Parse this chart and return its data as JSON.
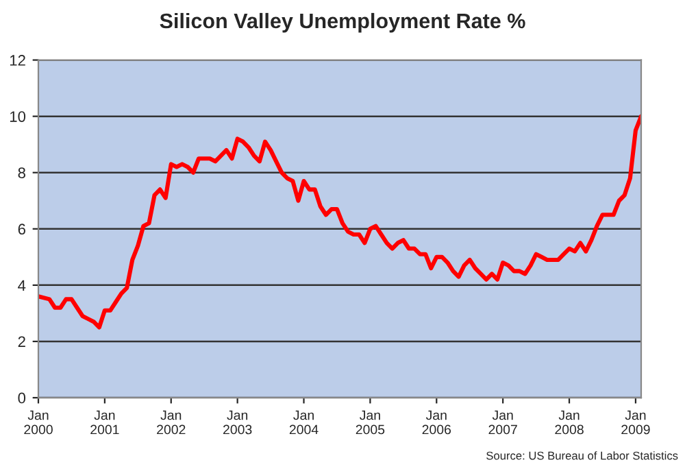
{
  "chart_data": {
    "type": "line",
    "title": "Silicon Valley Unemployment Rate %",
    "x": [
      "2000-01",
      "2000-03",
      "2000-04",
      "2000-05",
      "2000-06",
      "2000-07",
      "2000-08",
      "2000-09",
      "2000-10",
      "2000-11",
      "2000-12",
      "2001-01",
      "2001-02",
      "2001-03",
      "2001-04",
      "2001-05",
      "2001-06",
      "2001-07",
      "2001-08",
      "2001-09",
      "2001-10",
      "2001-11",
      "2001-12",
      "2002-01",
      "2002-02",
      "2002-03",
      "2002-04",
      "2002-05",
      "2002-06",
      "2002-07",
      "2002-08",
      "2002-09",
      "2002-10",
      "2002-11",
      "2002-12",
      "2003-01",
      "2003-02",
      "2003-03",
      "2003-04",
      "2003-05",
      "2003-06",
      "2003-07",
      "2003-08",
      "2003-09",
      "2003-10",
      "2003-11",
      "2003-12",
      "2004-01",
      "2004-02",
      "2004-03",
      "2004-04",
      "2004-05",
      "2004-06",
      "2004-07",
      "2004-08",
      "2004-09",
      "2004-10",
      "2004-11",
      "2004-12",
      "2005-01",
      "2005-02",
      "2005-03",
      "2005-04",
      "2005-05",
      "2005-06",
      "2005-07",
      "2005-08",
      "2005-09",
      "2005-10",
      "2005-11",
      "2005-12",
      "2006-01",
      "2006-02",
      "2006-03",
      "2006-04",
      "2006-05",
      "2006-06",
      "2006-07",
      "2006-08",
      "2006-09",
      "2006-10",
      "2006-11",
      "2006-12",
      "2007-01",
      "2007-02",
      "2007-03",
      "2007-04",
      "2007-05",
      "2007-06",
      "2007-07",
      "2007-08",
      "2007-09",
      "2007-10",
      "2007-11",
      "2007-12",
      "2008-01",
      "2008-02",
      "2008-03",
      "2008-04",
      "2008-05",
      "2008-06",
      "2008-07",
      "2008-08",
      "2008-09",
      "2008-10",
      "2008-11",
      "2008-12",
      "2009-01",
      "2009-02"
    ],
    "series": [
      {
        "color": "#ff0000",
        "values": [
          3.6,
          3.5,
          3.2,
          3.2,
          3.5,
          3.5,
          3.2,
          2.9,
          2.8,
          2.7,
          2.5,
          3.1,
          3.1,
          3.4,
          3.7,
          3.9,
          4.9,
          5.4,
          6.1,
          6.2,
          7.2,
          7.4,
          7.1,
          8.3,
          8.2,
          8.3,
          8.2,
          8.0,
          8.5,
          8.5,
          8.5,
          8.4,
          8.6,
          8.8,
          8.5,
          9.2,
          9.1,
          8.9,
          8.6,
          8.4,
          9.1,
          8.8,
          8.4,
          8.0,
          7.8,
          7.7,
          7.0,
          7.7,
          7.4,
          7.4,
          6.8,
          6.5,
          6.7,
          6.7,
          6.2,
          5.9,
          5.8,
          5.8,
          5.5,
          6.0,
          6.1,
          5.8,
          5.5,
          5.3,
          5.5,
          5.6,
          5.3,
          5.3,
          5.1,
          5.1,
          4.6,
          5.0,
          5.0,
          4.8,
          4.5,
          4.3,
          4.7,
          4.9,
          4.6,
          4.4,
          4.2,
          4.4,
          4.2,
          4.8,
          4.7,
          4.5,
          4.5,
          4.4,
          4.7,
          5.1,
          5.0,
          4.9,
          4.9,
          4.9,
          5.1,
          5.3,
          5.2,
          5.5,
          5.2,
          5.6,
          6.1,
          6.5,
          6.5,
          6.5,
          7.0,
          7.2,
          7.8,
          9.5,
          10.0
        ]
      }
    ],
    "xlim": [
      "2000-01",
      "2009-02"
    ],
    "xticks": [
      {
        "value": "2000-01",
        "label": "Jan\n2000"
      },
      {
        "value": "2001-01",
        "label": "Jan\n2001"
      },
      {
        "value": "2002-01",
        "label": "Jan\n2002"
      },
      {
        "value": "2003-01",
        "label": "Jan\n2003"
      },
      {
        "value": "2004-01",
        "label": "Jan\n2004"
      },
      {
        "value": "2005-01",
        "label": "Jan\n2005"
      },
      {
        "value": "2006-01",
        "label": "Jan\n2006"
      },
      {
        "value": "2007-01",
        "label": "Jan\n2007"
      },
      {
        "value": "2008-01",
        "label": "Jan\n2008"
      },
      {
        "value": "2009-01",
        "label": "Jan\n2009"
      }
    ],
    "ylim": [
      0,
      12
    ],
    "yticks": [
      0,
      2,
      4,
      6,
      8,
      10,
      12
    ],
    "grid": "y",
    "annotations": [
      "Source: US Bureau of Labor Statistics"
    ]
  }
}
